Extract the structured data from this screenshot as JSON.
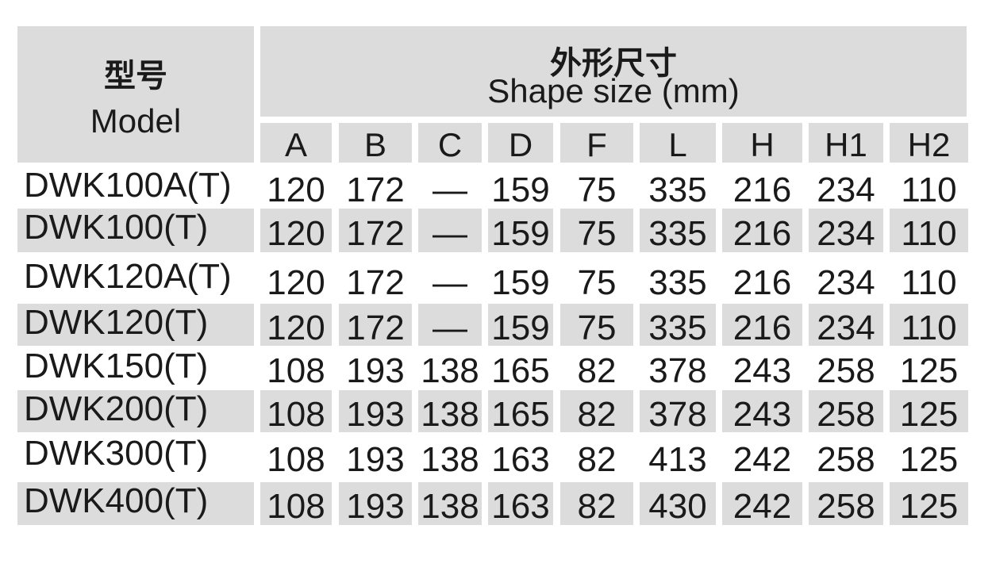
{
  "header": {
    "model_cn": "型号",
    "model_en": "Model",
    "shape_cn": "外形尺寸",
    "shape_en": "Shape size (mm)",
    "columns": [
      "A",
      "B",
      "C",
      "D",
      "F",
      "L",
      "H",
      "H1",
      "H2"
    ]
  },
  "rows": [
    {
      "model": "DWK100A(T)",
      "values": [
        "120",
        "172",
        "—",
        "159",
        "75",
        "335",
        "216",
        "234",
        "110"
      ]
    },
    {
      "model": "DWK100(T)",
      "values": [
        "120",
        "172",
        "—",
        "159",
        "75",
        "335",
        "216",
        "234",
        "110"
      ]
    },
    {
      "model": "DWK120A(T)",
      "values": [
        "120",
        "172",
        "—",
        "159",
        "75",
        "335",
        "216",
        "234",
        "110"
      ]
    },
    {
      "model": "DWK120(T)",
      "values": [
        "120",
        "172",
        "—",
        "159",
        "75",
        "335",
        "216",
        "234",
        "110"
      ]
    },
    {
      "model": "DWK150(T)",
      "values": [
        "108",
        "193",
        "138",
        "165",
        "82",
        "378",
        "243",
        "258",
        "125"
      ]
    },
    {
      "model": "DWK200(T)",
      "values": [
        "108",
        "193",
        "138",
        "165",
        "82",
        "378",
        "243",
        "258",
        "125"
      ]
    },
    {
      "model": "DWK300(T)",
      "values": [
        "108",
        "193",
        "138",
        "163",
        "82",
        "413",
        "242",
        "258",
        "125"
      ]
    },
    {
      "model": "DWK400(T)",
      "values": [
        "108",
        "193",
        "138",
        "163",
        "82",
        "430",
        "242",
        "258",
        "125"
      ]
    }
  ],
  "colors": {
    "shade": "#dcdcdc",
    "text": "#1a1a1a"
  }
}
